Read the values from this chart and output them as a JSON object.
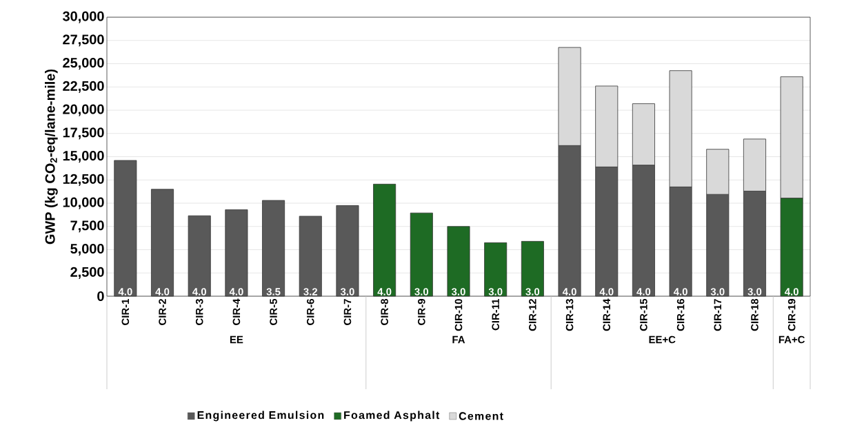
{
  "chart_data": {
    "type": "bar",
    "stacked": true,
    "ylabel": "GWP (kg CO$_{2}$-eq/lane-mile)",
    "categories": [
      "CIR-1",
      "CIR-2",
      "CIR-3",
      "CIR-4",
      "CIR-5",
      "CIR-6",
      "CIR-7",
      "CIR-8",
      "CIR-9",
      "CIR-10",
      "CIR-11",
      "CIR-12",
      "CIR-13",
      "CIR-14",
      "CIR-15",
      "CIR-16",
      "CIR-17",
      "CIR-18",
      "CIR-19"
    ],
    "series": [
      {
        "name": "Engineered Emulsion",
        "color": "#595959",
        "values": [
          14600,
          11500,
          8650,
          9300,
          10300,
          8600,
          9750,
          null,
          null,
          null,
          null,
          null,
          16200,
          13900,
          14100,
          11750,
          10950,
          11300,
          null
        ]
      },
      {
        "name": "Foamed Asphalt",
        "color": "#1e6b24",
        "values": [
          null,
          null,
          null,
          null,
          null,
          null,
          null,
          12050,
          8950,
          7500,
          5750,
          5900,
          null,
          null,
          null,
          null,
          null,
          null,
          10550
        ]
      },
      {
        "name": "Cement",
        "color": "#d9d9d9",
        "values": [
          null,
          null,
          null,
          null,
          null,
          null,
          null,
          null,
          null,
          null,
          null,
          null,
          10550,
          8700,
          6600,
          12500,
          4850,
          5600,
          13050
        ]
      }
    ],
    "annotations": [
      "EE",
      "FA",
      "EE+C",
      "FA+C",
      {
        "text": "4.0",
        "x": "CIR-1",
        "y": 0
      },
      {
        "text": "4.0",
        "x": "CIR-2",
        "y": 0
      },
      {
        "text": "4.0",
        "x": "CIR-3",
        "y": 0
      },
      {
        "text": "4.0",
        "x": "CIR-4",
        "y": 0
      },
      {
        "text": "3.5",
        "x": "CIR-5",
        "y": 0
      },
      {
        "text": "3.2",
        "x": "CIR-6",
        "y": 0
      },
      {
        "text": "3.0",
        "x": "CIR-7",
        "y": 0
      },
      {
        "text": "4.0",
        "x": "CIR-8",
        "y": 0
      },
      {
        "text": "3.0",
        "x": "CIR-9",
        "y": 0
      },
      {
        "text": "3.0",
        "x": "CIR-10",
        "y": 0
      },
      {
        "text": "3.0",
        "x": "CIR-11",
        "y": 0
      },
      {
        "text": "3.0",
        "x": "CIR-12",
        "y": 0
      },
      {
        "text": "4.0",
        "x": "CIR-13",
        "y": 0
      },
      {
        "text": "4.0",
        "x": "CIR-14",
        "y": 0
      },
      {
        "text": "4.0",
        "x": "CIR-15",
        "y": 0
      },
      {
        "text": "4.0",
        "x": "CIR-16",
        "y": 0
      },
      {
        "text": "3.0",
        "x": "CIR-17",
        "y": 0
      },
      {
        "text": "3.0",
        "x": "CIR-18",
        "y": 0
      },
      {
        "text": "4.0",
        "x": "CIR-19",
        "y": 0
      }
    ],
    "ylim": [
      0,
      30000
    ],
    "yticks": [
      0,
      {
        "value": 2500,
        "label": "2,500"
      },
      {
        "value": 5000,
        "label": "5,000"
      },
      {
        "value": 7500,
        "label": "7,500"
      },
      {
        "value": 10000,
        "label": "10,000"
      },
      {
        "value": 12500,
        "label": "12,500"
      },
      {
        "value": 15000,
        "label": "15,000"
      },
      {
        "value": 17500,
        "label": "17,500"
      },
      {
        "value": 20000,
        "label": "20,000"
      },
      {
        "value": 22500,
        "label": "22,500"
      },
      {
        "value": 25000,
        "label": "25,000"
      },
      {
        "value": 27500,
        "label": "27,500"
      },
      {
        "value": 30000,
        "label": "30,000"
      }
    ],
    "grid": "y",
    "legend": "bottom"
  }
}
